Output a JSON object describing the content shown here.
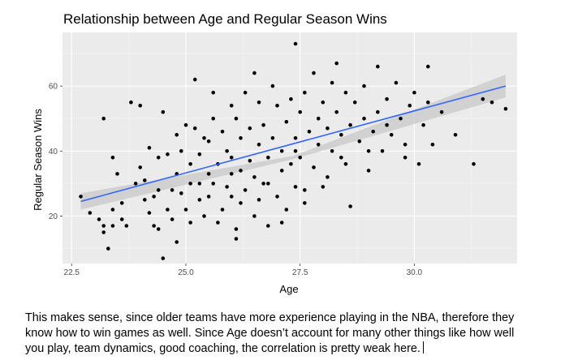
{
  "chart_data": {
    "type": "scatter",
    "title": "Relationship between Age and Regular Season Wins",
    "xlabel": "Age",
    "ylabel": "Regular Season Wins",
    "xlim": [
      22.3,
      32.25
    ],
    "ylim": [
      5.4,
      76.5
    ],
    "x_ticks": [
      22.5,
      25.0,
      27.5,
      30.0
    ],
    "x_tick_labels": [
      "22.5",
      "25.0",
      "27.5",
      "30.0"
    ],
    "y_ticks": [
      20,
      40,
      60
    ],
    "y_tick_labels": [
      "20",
      "40",
      "60"
    ],
    "panel_background": "#ebebeb",
    "grid": true,
    "point_color": "#000000",
    "trend": {
      "method": "linear regression with confidence band",
      "color": "#3366ff",
      "band_color": "#c8c8c8",
      "x": [
        22.7,
        32.0
      ],
      "y": [
        24.5,
        60.0
      ],
      "ci_start": [
        22.0,
        27.0
      ],
      "ci_mid": [
        37.5,
        38.5
      ],
      "ci_end": [
        56.5,
        63.5
      ]
    },
    "points": [
      [
        22.7,
        26
      ],
      [
        22.9,
        21
      ],
      [
        23.1,
        19
      ],
      [
        23.2,
        50
      ],
      [
        23.2,
        15
      ],
      [
        23.2,
        17
      ],
      [
        23.3,
        10
      ],
      [
        23.4,
        22
      ],
      [
        23.4,
        38
      ],
      [
        23.4,
        17
      ],
      [
        23.5,
        33
      ],
      [
        23.6,
        24
      ],
      [
        23.6,
        19
      ],
      [
        23.7,
        17
      ],
      [
        23.8,
        55
      ],
      [
        24.0,
        35
      ],
      [
        24.0,
        54
      ],
      [
        24.1,
        31
      ],
      [
        24.2,
        41
      ],
      [
        24.2,
        21
      ],
      [
        24.3,
        26
      ],
      [
        24.3,
        17
      ],
      [
        24.4,
        38
      ],
      [
        24.4,
        28
      ],
      [
        24.4,
        16
      ],
      [
        24.5,
        52
      ],
      [
        24.5,
        7
      ],
      [
        24.6,
        39
      ],
      [
        24.6,
        22
      ],
      [
        24.7,
        19
      ],
      [
        24.8,
        45
      ],
      [
        24.8,
        33
      ],
      [
        24.8,
        12
      ],
      [
        24.9,
        40
      ],
      [
        24.9,
        27
      ],
      [
        25.0,
        48
      ],
      [
        25.1,
        36
      ],
      [
        25.1,
        30
      ],
      [
        25.1,
        18
      ],
      [
        25.2,
        62
      ],
      [
        25.2,
        47
      ],
      [
        25.3,
        25
      ],
      [
        25.3,
        39
      ],
      [
        25.4,
        44
      ],
      [
        25.4,
        20
      ],
      [
        25.5,
        43
      ],
      [
        25.5,
        33
      ],
      [
        25.6,
        58
      ],
      [
        25.6,
        50
      ],
      [
        25.6,
        30
      ],
      [
        25.7,
        36
      ],
      [
        25.8,
        46
      ],
      [
        25.8,
        22
      ],
      [
        25.9,
        40
      ],
      [
        25.9,
        29
      ],
      [
        26.0,
        54
      ],
      [
        26.0,
        38
      ],
      [
        26.0,
        26
      ],
      [
        26.1,
        50
      ],
      [
        26.1,
        13
      ],
      [
        26.1,
        16
      ],
      [
        26.2,
        44
      ],
      [
        26.2,
        34
      ],
      [
        26.3,
        58
      ],
      [
        26.3,
        28
      ],
      [
        26.4,
        47
      ],
      [
        26.4,
        37
      ],
      [
        26.5,
        32
      ],
      [
        26.5,
        64
      ],
      [
        26.5,
        20
      ],
      [
        26.6,
        42
      ],
      [
        26.6,
        55
      ],
      [
        26.7,
        48
      ],
      [
        26.7,
        30
      ],
      [
        26.8,
        38
      ],
      [
        26.8,
        17
      ],
      [
        26.9,
        60
      ],
      [
        26.9,
        44
      ],
      [
        27.0,
        54
      ],
      [
        27.0,
        26
      ],
      [
        27.1,
        40
      ],
      [
        27.1,
        34
      ],
      [
        27.2,
        49
      ],
      [
        27.2,
        22
      ],
      [
        27.3,
        56
      ],
      [
        27.3,
        36
      ],
      [
        27.4,
        73
      ],
      [
        27.4,
        44
      ],
      [
        27.4,
        29
      ],
      [
        27.5,
        52
      ],
      [
        27.5,
        38
      ],
      [
        27.6,
        58
      ],
      [
        27.6,
        24
      ],
      [
        27.7,
        46
      ],
      [
        27.8,
        64
      ],
      [
        27.8,
        35
      ],
      [
        27.9,
        50
      ],
      [
        27.9,
        42
      ],
      [
        28.0,
        55
      ],
      [
        28.0,
        29
      ],
      [
        28.1,
        47
      ],
      [
        28.2,
        61
      ],
      [
        28.2,
        40
      ],
      [
        28.3,
        52
      ],
      [
        28.3,
        67
      ],
      [
        28.4,
        45
      ],
      [
        28.5,
        58
      ],
      [
        28.5,
        36
      ],
      [
        28.6,
        48
      ],
      [
        28.7,
        55
      ],
      [
        28.8,
        43
      ],
      [
        28.9,
        60
      ],
      [
        28.9,
        50
      ],
      [
        29.0,
        34
      ],
      [
        29.1,
        46
      ],
      [
        29.2,
        66
      ],
      [
        29.2,
        52
      ],
      [
        29.3,
        40
      ],
      [
        29.4,
        56
      ],
      [
        29.5,
        45
      ],
      [
        29.6,
        61
      ],
      [
        29.7,
        50
      ],
      [
        29.8,
        38
      ],
      [
        29.9,
        54
      ],
      [
        30.0,
        58
      ],
      [
        30.1,
        36
      ],
      [
        30.2,
        48
      ],
      [
        30.3,
        66
      ],
      [
        30.3,
        55
      ],
      [
        30.4,
        42
      ],
      [
        30.6,
        52
      ],
      [
        30.9,
        45
      ],
      [
        31.3,
        36
      ],
      [
        31.5,
        56
      ],
      [
        31.7,
        55
      ],
      [
        32.0,
        53
      ],
      [
        23.9,
        30
      ],
      [
        24.1,
        25
      ],
      [
        24.7,
        28
      ],
      [
        25.0,
        22
      ],
      [
        25.3,
        30
      ],
      [
        25.7,
        18
      ],
      [
        26.2,
        24
      ],
      [
        26.6,
        25
      ],
      [
        27.1,
        18
      ],
      [
        27.6,
        28
      ],
      [
        28.1,
        32
      ],
      [
        28.6,
        23
      ],
      [
        29.0,
        40
      ],
      [
        29.8,
        42
      ],
      [
        25.5,
        26
      ],
      [
        26.0,
        33
      ],
      [
        26.8,
        30
      ],
      [
        27.4,
        40
      ],
      [
        28.4,
        38
      ],
      [
        29.4,
        48
      ]
    ]
  },
  "caption": {
    "lines": [
      "This makes sense, since older teams have more experience playing in the NBA, therefore they",
      "know how to win games as well. Since Age doesn’t account for many other things like how well",
      "you play, team dynamics, good coaching, the correlation is pretty weak here."
    ]
  }
}
